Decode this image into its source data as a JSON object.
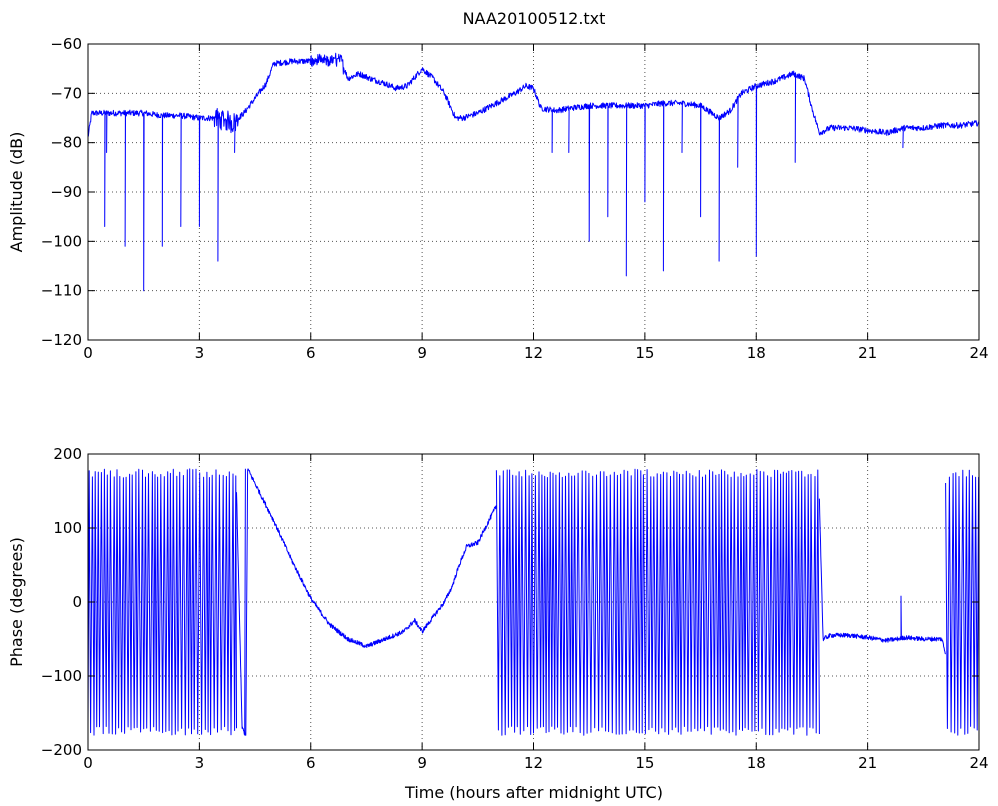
{
  "figure_title": "NAA20100512.txt",
  "colors": {
    "series": "#0000ff",
    "axes": "#000000",
    "background": "#ffffff"
  },
  "chart_data": [
    {
      "type": "line",
      "title": "NAA20100512.txt",
      "xlabel": "",
      "ylabel": "Amplitude (dB)",
      "xlim": [
        0,
        24
      ],
      "ylim": [
        -120,
        -60
      ],
      "x_ticks": [
        0,
        3,
        6,
        9,
        12,
        15,
        18,
        21,
        24
      ],
      "y_ticks": [
        -120,
        -110,
        -100,
        -90,
        -80,
        -70,
        -60
      ],
      "grid": true,
      "series": [
        {
          "x": [
            0.0,
            0.1,
            0.5,
            1.0,
            1.5,
            2.0,
            2.5,
            3.0,
            3.5,
            3.9,
            4.2,
            4.5,
            4.8,
            5.0,
            5.5,
            6.0,
            6.5,
            6.8,
            7.0,
            7.3,
            7.6,
            8.0,
            8.3,
            8.6,
            9.0,
            9.3,
            9.6,
            9.9,
            10.1,
            10.5,
            11.0,
            11.5,
            11.8,
            12.0,
            12.2,
            12.6,
            13.0,
            13.5,
            14.0,
            14.5,
            15.0,
            15.5,
            16.0,
            16.5,
            16.8,
            17.0,
            17.3,
            17.6,
            18.0,
            18.5,
            19.0,
            19.3,
            19.5,
            19.7,
            20.0,
            20.5,
            21.0,
            21.5,
            22.0,
            22.5,
            23.0,
            23.5,
            24.0
          ],
          "y": [
            -79,
            -74,
            -74,
            -74,
            -74,
            -74.5,
            -74.5,
            -75,
            -75,
            -76,
            -74,
            -71,
            -68,
            -64,
            -63.5,
            -63.5,
            -63.5,
            -63,
            -67,
            -66,
            -67,
            -68,
            -69,
            -68.5,
            -65,
            -67,
            -70,
            -75,
            -75,
            -74,
            -72,
            -70,
            -68.5,
            -69,
            -73,
            -73.5,
            -73,
            -72.5,
            -72.5,
            -72.5,
            -72.5,
            -72,
            -72,
            -72.5,
            -74,
            -75,
            -73.5,
            -70,
            -68.5,
            -67.5,
            -66,
            -67,
            -73,
            -78,
            -77,
            -77,
            -77.5,
            -78,
            -77,
            -77,
            -76.5,
            -76.5,
            -76
          ],
          "dips": [
            {
              "x": 0.45,
              "y": -97
            },
            {
              "x": 0.5,
              "y": -82
            },
            {
              "x": 1.0,
              "y": -101
            },
            {
              "x": 1.5,
              "y": -110
            },
            {
              "x": 2.0,
              "y": -101
            },
            {
              "x": 2.5,
              "y": -97
            },
            {
              "x": 3.0,
              "y": -97
            },
            {
              "x": 3.5,
              "y": -104
            },
            {
              "x": 3.95,
              "y": -82
            },
            {
              "x": 12.5,
              "y": -82
            },
            {
              "x": 12.95,
              "y": -82
            },
            {
              "x": 13.5,
              "y": -100
            },
            {
              "x": 14.0,
              "y": -95
            },
            {
              "x": 14.5,
              "y": -107
            },
            {
              "x": 15.0,
              "y": -92
            },
            {
              "x": 15.5,
              "y": -106
            },
            {
              "x": 16.0,
              "y": -82
            },
            {
              "x": 16.5,
              "y": -95
            },
            {
              "x": 17.0,
              "y": -104
            },
            {
              "x": 17.5,
              "y": -85
            },
            {
              "x": 18.0,
              "y": -103
            },
            {
              "x": 19.05,
              "y": -84
            },
            {
              "x": 21.95,
              "y": -81
            }
          ]
        }
      ]
    },
    {
      "type": "line",
      "title": "",
      "xlabel": "Time (hours after midnight UTC)",
      "ylabel": "Phase (degrees)",
      "xlim": [
        0,
        24
      ],
      "ylim": [
        -200,
        200
      ],
      "x_ticks": [
        0,
        3,
        6,
        9,
        12,
        15,
        18,
        21,
        24
      ],
      "y_ticks": [
        -200,
        -100,
        0,
        100,
        200
      ],
      "grid": true,
      "wrapped_ranges": [
        [
          0.0,
          4.0
        ],
        [
          11.0,
          19.7
        ],
        [
          23.1,
          24.0
        ]
      ],
      "wrap_limits": [
        -180,
        180
      ],
      "series": [
        {
          "x": [
            4.0,
            4.15,
            4.25,
            4.3,
            4.5,
            5.0,
            5.5,
            6.0,
            6.5,
            7.0,
            7.5,
            8.0,
            8.5,
            8.8,
            9.0,
            9.3,
            9.6,
            9.8,
            10.0,
            10.2,
            10.5,
            10.8,
            11.0,
            11.05,
            19.7,
            19.8,
            20.0,
            20.5,
            21.0,
            21.5,
            21.8,
            22.0,
            22.5,
            23.0,
            23.1
          ],
          "y": [
            150,
            -170,
            -180,
            180,
            160,
            110,
            55,
            5,
            -30,
            -50,
            -60,
            -50,
            -40,
            -25,
            -40,
            -20,
            0,
            20,
            50,
            75,
            80,
            110,
            130,
            -50,
            140,
            -50,
            -45,
            -45,
            -48,
            -52,
            -50,
            -48,
            -50,
            -50,
            -70
          ],
          "spikes": [
            {
              "x": 21.9,
              "y": 8
            }
          ]
        }
      ]
    }
  ]
}
